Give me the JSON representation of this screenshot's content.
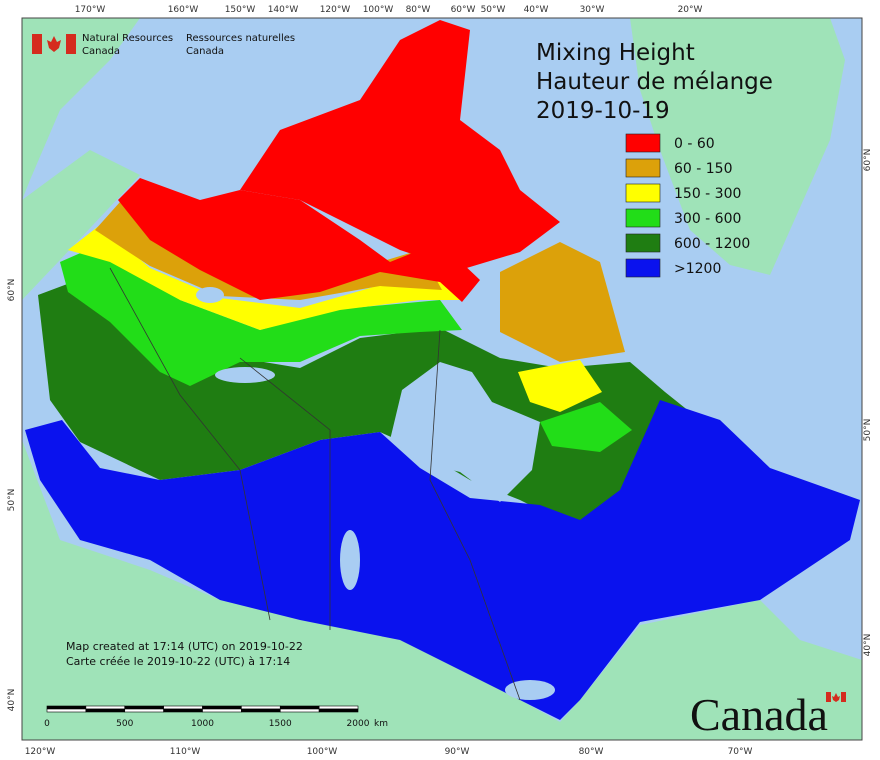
{
  "header": {
    "agency_en": [
      "Natural Resources",
      "Canada"
    ],
    "agency_fr": [
      "Ressources naturelles",
      "Canada"
    ]
  },
  "title": [
    "Mixing Height",
    "Hauteur de mélange",
    "2019-10-19"
  ],
  "legend": {
    "items": [
      {
        "label": "0 - 60",
        "color": "#ff0000"
      },
      {
        "label": "60 - 150",
        "color": "#dca10a"
      },
      {
        "label": "150 - 300",
        "color": "#ffff00"
      },
      {
        "label": "300 - 600",
        "color": "#22dd18"
      },
      {
        "label": "600 - 1200",
        "color": "#1f7d12"
      },
      {
        "label": ">1200",
        "color": "#0a12ee"
      }
    ]
  },
  "graticule": {
    "top": [
      "170°W",
      "160°W",
      "150°W",
      "140°W",
      "120°W",
      "100°W",
      "80°W",
      "60°W",
      "50°W",
      "40°W",
      "30°W",
      "20°W"
    ],
    "bottom": [
      "120°W",
      "110°W",
      "100°W",
      "90°W",
      "80°W",
      "70°W"
    ],
    "left": [
      "60°N",
      "50°N",
      "40°N"
    ],
    "right": [
      "60°N",
      "50°N",
      "40°N"
    ]
  },
  "credits": [
    "Map created at 17:14 (UTC) on 2019-10-22",
    "Carte créée le 2019-10-22 (UTC) à 17:14"
  ],
  "scale_bar": {
    "labels": [
      "0",
      "500",
      "1000",
      "1500",
      "2000"
    ],
    "unit": "km"
  },
  "wordmark": "Canada"
}
